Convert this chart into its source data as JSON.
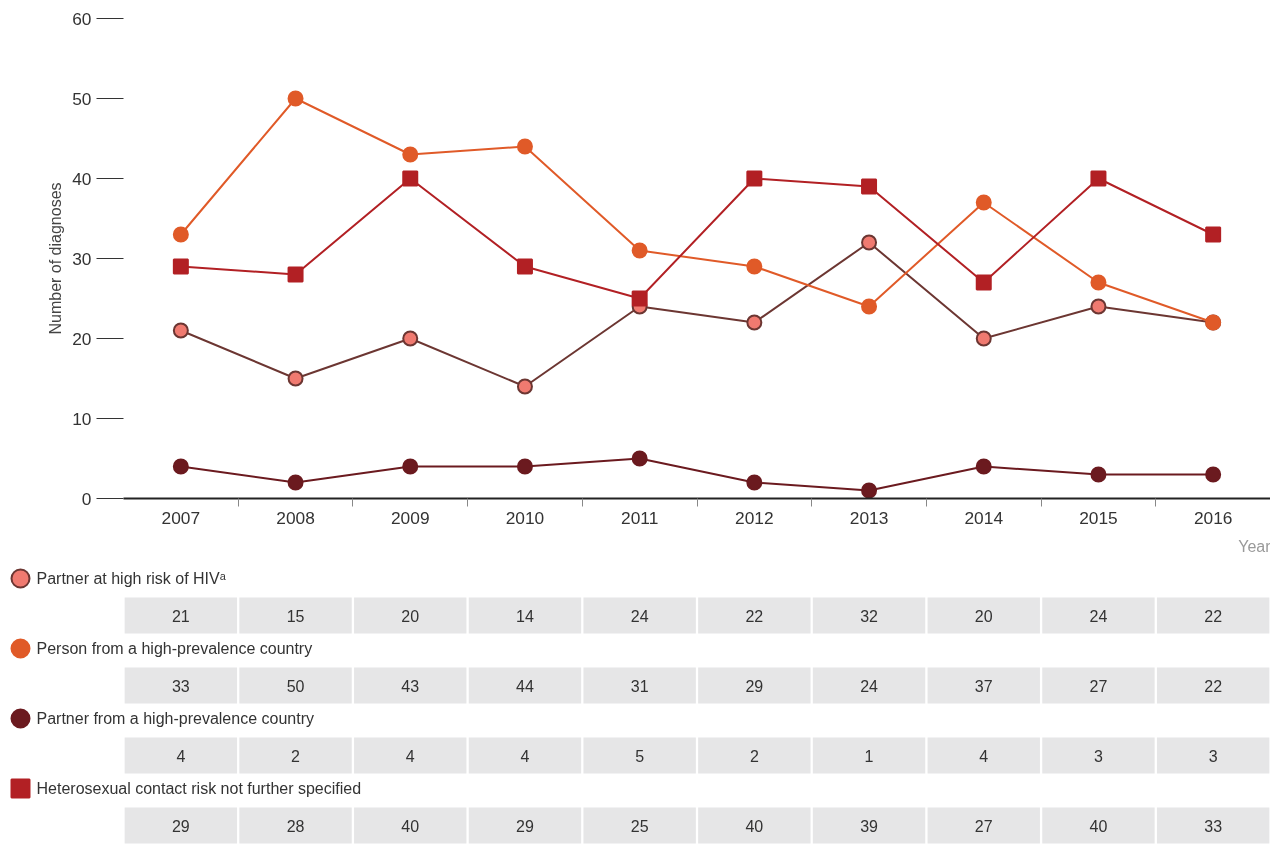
{
  "chart_data": {
    "type": "line",
    "xlabel": "Year",
    "ylabel": "Number of diagnoses",
    "categories": [
      "2007",
      "2008",
      "2009",
      "2010",
      "2011",
      "2012",
      "2013",
      "2014",
      "2015",
      "2016"
    ],
    "series": [
      {
        "name": "Partner at high risk of HIVᵃ",
        "color": "#f07a70",
        "marker": "circle",
        "values": [
          21,
          15,
          20,
          14,
          24,
          22,
          32,
          20,
          24,
          22
        ]
      },
      {
        "name": "Person from a high-prevalence country",
        "color": "#e05a28",
        "marker": "circle",
        "values": [
          33,
          50,
          43,
          44,
          31,
          29,
          24,
          37,
          27,
          22
        ]
      },
      {
        "name": "Partner from a high-prevalence country",
        "color": "#6b1a1f",
        "marker": "circle",
        "values": [
          4,
          2,
          4,
          4,
          5,
          2,
          1,
          4,
          3,
          3
        ]
      },
      {
        "name": "Heterosexual contact risk not further specified",
        "color": "#b22024",
        "marker": "square",
        "values": [
          29,
          28,
          40,
          29,
          25,
          40,
          39,
          27,
          40,
          33
        ]
      }
    ],
    "ylim": [
      0,
      60
    ],
    "yticks": [
      0,
      10,
      20,
      30,
      40,
      50,
      60
    ],
    "grid": false,
    "legend": "bottom",
    "data_labels": true
  }
}
